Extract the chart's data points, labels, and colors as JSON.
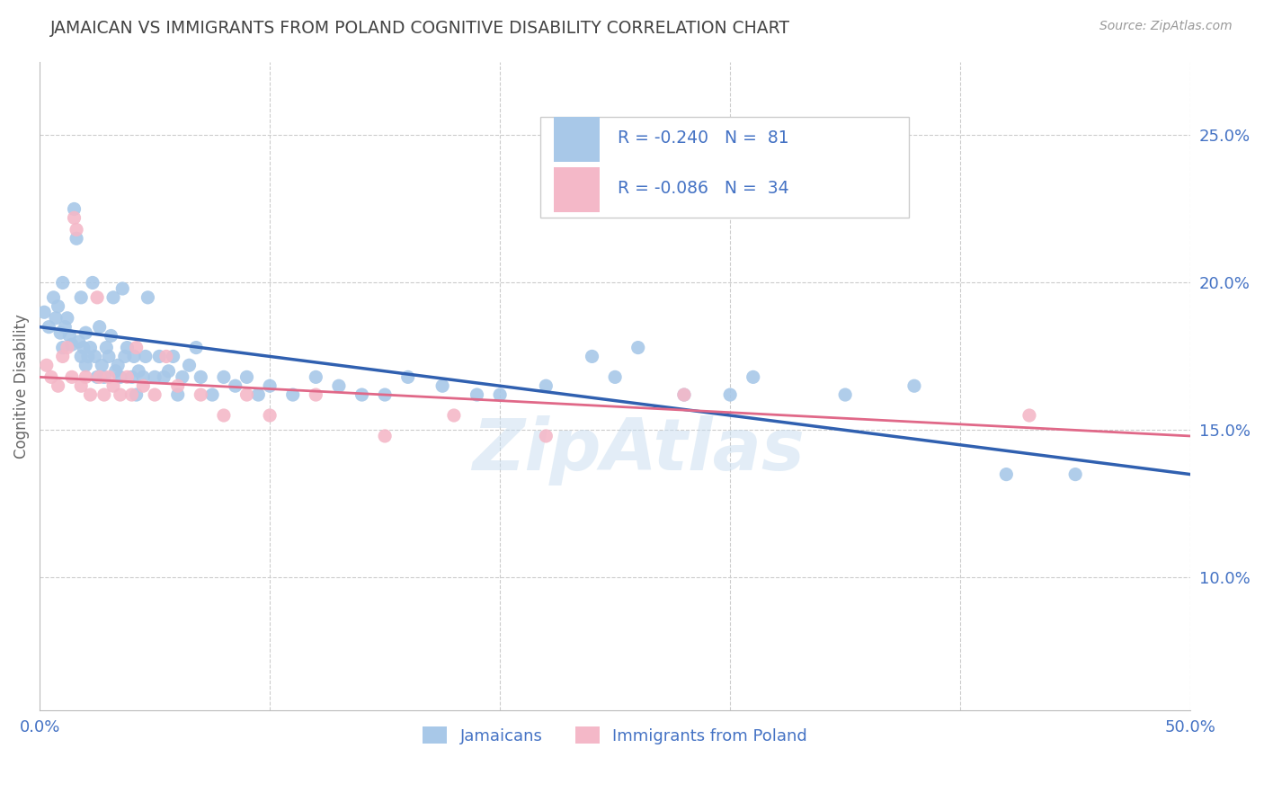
{
  "title": "JAMAICAN VS IMMIGRANTS FROM POLAND COGNITIVE DISABILITY CORRELATION CHART",
  "source": "Source: ZipAtlas.com",
  "ylabel": "Cognitive Disability",
  "xlim": [
    0.0,
    0.5
  ],
  "ylim": [
    0.055,
    0.275
  ],
  "yticks_right": [
    0.1,
    0.15,
    0.2,
    0.25
  ],
  "yticklabels_right": [
    "10.0%",
    "15.0%",
    "20.0%",
    "25.0%"
  ],
  "blue_color": "#a8c8e8",
  "pink_color": "#f4b8c8",
  "trend_blue": "#3060b0",
  "trend_pink": "#e06888",
  "axis_color": "#4472c4",
  "title_color": "#444444",
  "background_color": "#ffffff",
  "grid_color": "#cccccc",
  "jamaicans_x": [
    0.002,
    0.004,
    0.006,
    0.007,
    0.008,
    0.009,
    0.01,
    0.01,
    0.011,
    0.012,
    0.013,
    0.014,
    0.015,
    0.016,
    0.017,
    0.018,
    0.018,
    0.019,
    0.02,
    0.02,
    0.021,
    0.022,
    0.023,
    0.024,
    0.025,
    0.026,
    0.027,
    0.028,
    0.029,
    0.03,
    0.031,
    0.032,
    0.033,
    0.034,
    0.035,
    0.036,
    0.037,
    0.038,
    0.04,
    0.041,
    0.042,
    0.043,
    0.045,
    0.046,
    0.047,
    0.05,
    0.052,
    0.054,
    0.056,
    0.058,
    0.06,
    0.062,
    0.065,
    0.068,
    0.07,
    0.075,
    0.08,
    0.085,
    0.09,
    0.095,
    0.1,
    0.11,
    0.12,
    0.13,
    0.14,
    0.15,
    0.16,
    0.175,
    0.19,
    0.2,
    0.22,
    0.25,
    0.28,
    0.3,
    0.35,
    0.42,
    0.45,
    0.24,
    0.26,
    0.31,
    0.38
  ],
  "jamaicans_y": [
    0.19,
    0.185,
    0.195,
    0.188,
    0.192,
    0.183,
    0.178,
    0.2,
    0.185,
    0.188,
    0.182,
    0.179,
    0.225,
    0.215,
    0.18,
    0.175,
    0.195,
    0.178,
    0.172,
    0.183,
    0.175,
    0.178,
    0.2,
    0.175,
    0.168,
    0.185,
    0.172,
    0.168,
    0.178,
    0.175,
    0.182,
    0.195,
    0.17,
    0.172,
    0.168,
    0.198,
    0.175,
    0.178,
    0.168,
    0.175,
    0.162,
    0.17,
    0.168,
    0.175,
    0.195,
    0.168,
    0.175,
    0.168,
    0.17,
    0.175,
    0.162,
    0.168,
    0.172,
    0.178,
    0.168,
    0.162,
    0.168,
    0.165,
    0.168,
    0.162,
    0.165,
    0.162,
    0.168,
    0.165,
    0.162,
    0.162,
    0.168,
    0.165,
    0.162,
    0.162,
    0.165,
    0.168,
    0.162,
    0.162,
    0.162,
    0.135,
    0.135,
    0.175,
    0.178,
    0.168,
    0.165
  ],
  "poland_x": [
    0.003,
    0.005,
    0.008,
    0.01,
    0.012,
    0.014,
    0.015,
    0.016,
    0.018,
    0.02,
    0.022,
    0.025,
    0.026,
    0.028,
    0.03,
    0.032,
    0.035,
    0.038,
    0.04,
    0.042,
    0.045,
    0.05,
    0.055,
    0.06,
    0.07,
    0.08,
    0.09,
    0.1,
    0.12,
    0.15,
    0.18,
    0.22,
    0.28,
    0.43
  ],
  "poland_y": [
    0.172,
    0.168,
    0.165,
    0.175,
    0.178,
    0.168,
    0.222,
    0.218,
    0.165,
    0.168,
    0.162,
    0.195,
    0.168,
    0.162,
    0.168,
    0.165,
    0.162,
    0.168,
    0.162,
    0.178,
    0.165,
    0.162,
    0.175,
    0.165,
    0.162,
    0.155,
    0.162,
    0.155,
    0.162,
    0.148,
    0.155,
    0.148,
    0.162,
    0.155
  ],
  "blue_trend_x0": 0.0,
  "blue_trend_y0": 0.185,
  "blue_trend_x1": 0.5,
  "blue_trend_y1": 0.135,
  "pink_trend_x0": 0.0,
  "pink_trend_y0": 0.168,
  "pink_trend_x1": 0.5,
  "pink_trend_y1": 0.148
}
